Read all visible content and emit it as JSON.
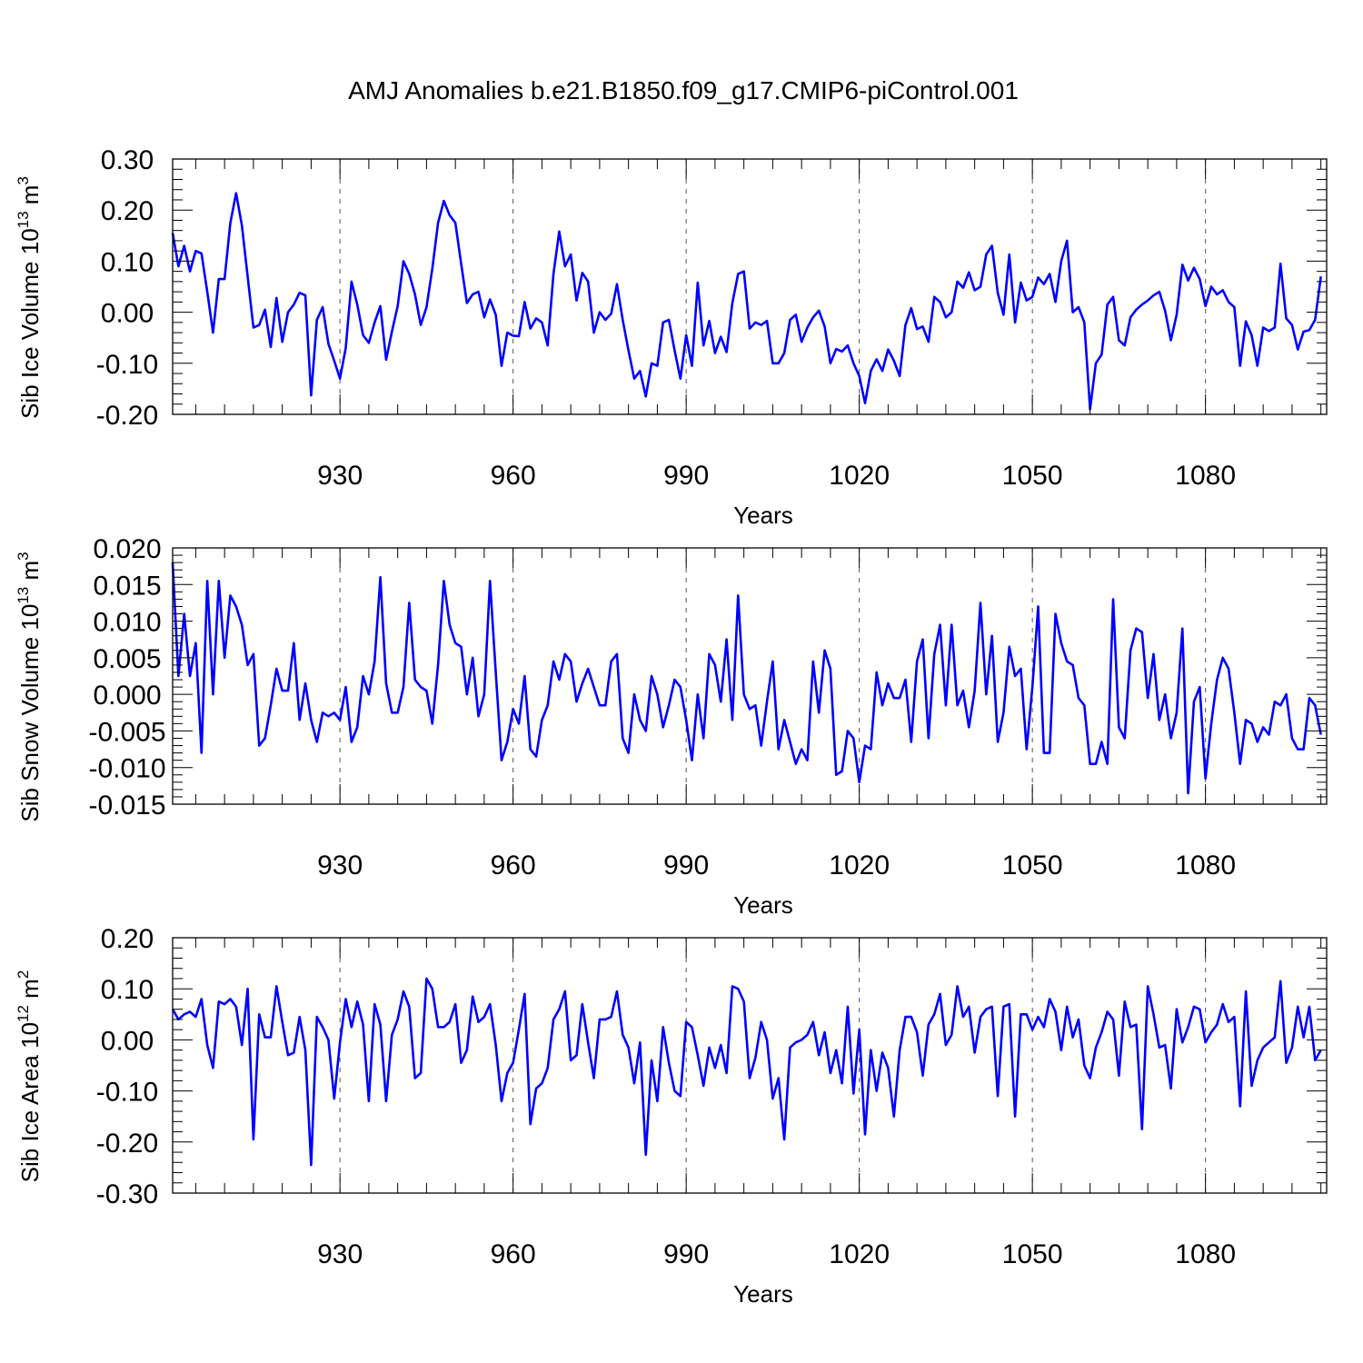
{
  "title": "AMJ Anomalies b.e21.B1850.f09_g17.CMIP6-piControl.001",
  "line_color": "#0000ff",
  "chart_data": [
    {
      "type": "line",
      "ylabel": {
        "base": "Sib Ice Volume 10",
        "exp": "13",
        "unit": " m",
        "unit_exp": "3"
      },
      "xlabel": "Years",
      "xlim": [
        901,
        1101
      ],
      "ylim": [
        -0.2,
        0.3
      ],
      "yticks": [
        -0.2,
        -0.1,
        0.0,
        0.1,
        0.2,
        0.3
      ],
      "ytick_labels": [
        "-0.20",
        "-0.10",
        "0.00",
        "0.10",
        "0.20",
        "0.30"
      ],
      "ytick_minor_step": 0.02,
      "xticks": [
        930,
        960,
        990,
        1020,
        1050,
        1080
      ],
      "xtick_labels": [
        "930",
        "960",
        "990",
        "1020",
        "1050",
        "1080"
      ],
      "xtick_minor_step": 5,
      "grid": "vertical dashed at major x ticks",
      "x_start": 901,
      "series": [
        {
          "values": [
            0.155,
            0.09,
            0.13,
            0.08,
            0.12,
            0.115,
            0.04,
            -0.04,
            0.065,
            0.065,
            0.175,
            0.233,
            0.17,
            0.07,
            -0.03,
            -0.025,
            0.005,
            -0.068,
            0.028,
            -0.058,
            0.0,
            0.015,
            0.038,
            0.033,
            -0.163,
            -0.015,
            0.01,
            -0.062,
            -0.095,
            -0.13,
            -0.07,
            0.06,
            0.015,
            -0.045,
            -0.06,
            -0.02,
            0.012,
            -0.093,
            -0.038,
            0.012,
            0.1,
            0.075,
            0.035,
            -0.025,
            0.01,
            0.085,
            0.175,
            0.218,
            0.19,
            0.175,
            0.095,
            0.018,
            0.035,
            0.04,
            -0.01,
            0.025,
            -0.005,
            -0.105,
            -0.04,
            -0.046,
            -0.047,
            0.02,
            -0.032,
            -0.012,
            -0.02,
            -0.065,
            0.075,
            0.158,
            0.09,
            0.113,
            0.023,
            0.077,
            0.06,
            -0.04,
            0.0,
            -0.015,
            -0.003,
            0.055,
            -0.015,
            -0.075,
            -0.13,
            -0.115,
            -0.165,
            -0.1,
            -0.105,
            -0.02,
            -0.015,
            -0.075,
            -0.13,
            -0.045,
            -0.105,
            0.058,
            -0.065,
            -0.017,
            -0.08,
            -0.048,
            -0.078,
            0.018,
            0.075,
            0.08,
            -0.032,
            -0.02,
            -0.025,
            -0.017,
            -0.1,
            -0.1,
            -0.08,
            -0.015,
            -0.005,
            -0.058,
            -0.03,
            -0.01,
            0.003,
            -0.028,
            -0.1,
            -0.072,
            -0.077,
            -0.065,
            -0.1,
            -0.125,
            -0.178,
            -0.115,
            -0.092,
            -0.115,
            -0.073,
            -0.095,
            -0.125,
            -0.025,
            0.008,
            -0.033,
            -0.028,
            -0.058,
            0.03,
            0.02,
            -0.01,
            0.0,
            0.06,
            0.048,
            0.078,
            0.043,
            0.05,
            0.113,
            0.13,
            0.038,
            -0.005,
            0.113,
            -0.02,
            0.058,
            0.023,
            0.03,
            0.068,
            0.055,
            0.075,
            0.02,
            0.1,
            0.14,
            0.0,
            0.01,
            -0.02,
            -0.19,
            -0.1,
            -0.083,
            0.015,
            0.03,
            -0.055,
            -0.065,
            -0.01,
            0.005,
            0.015,
            0.023,
            0.033,
            0.04,
            0.003,
            -0.055,
            -0.005,
            0.093,
            0.062,
            0.087,
            0.065,
            0.012,
            0.05,
            0.035,
            0.043,
            0.02,
            0.01,
            -0.105,
            -0.018,
            -0.045,
            -0.105,
            -0.03,
            -0.037,
            -0.03,
            0.095,
            -0.012,
            -0.025,
            -0.073,
            -0.038,
            -0.035,
            -0.015,
            0.07
          ]
        }
      ]
    },
    {
      "type": "line",
      "ylabel": {
        "base": "Sib Snow Volume 10",
        "exp": "13",
        "unit": " m",
        "unit_exp": "3"
      },
      "xlabel": "Years",
      "xlim": [
        901,
        1101
      ],
      "ylim": [
        -0.015,
        0.02
      ],
      "yticks": [
        -0.015,
        -0.01,
        -0.005,
        0.0,
        0.005,
        0.01,
        0.015,
        0.02
      ],
      "ytick_labels": [
        "-0.015",
        "-0.010",
        "-0.005",
        "0.000",
        "0.005",
        "0.010",
        "0.015",
        "0.020"
      ],
      "ytick_minor_step": 0.001,
      "xticks": [
        930,
        960,
        990,
        1020,
        1050,
        1080
      ],
      "xtick_labels": [
        "930",
        "960",
        "990",
        "1020",
        "1050",
        "1080"
      ],
      "xtick_minor_step": 5,
      "grid": "vertical dashed at major x ticks",
      "x_start": 901,
      "series": [
        {
          "values": [
            0.018,
            0.0025,
            0.011,
            0.0025,
            0.007,
            -0.008,
            0.0155,
            0.0,
            0.0155,
            0.005,
            0.0135,
            0.012,
            0.0095,
            0.004,
            0.0055,
            -0.007,
            -0.006,
            -0.0015,
            0.0035,
            0.0005,
            0.0005,
            0.007,
            -0.0035,
            0.0015,
            -0.0035,
            -0.0065,
            -0.0025,
            -0.003,
            -0.0025,
            -0.0035,
            0.001,
            -0.0065,
            -0.0045,
            0.0025,
            0.0,
            0.0045,
            0.016,
            0.0015,
            -0.0025,
            -0.0025,
            0.001,
            0.0125,
            0.002,
            0.001,
            0.0005,
            -0.004,
            0.004,
            0.0155,
            0.0095,
            0.007,
            0.0065,
            0.0,
            0.005,
            -0.003,
            0.0,
            0.0155,
            0.003,
            -0.009,
            -0.0065,
            -0.002,
            -0.004,
            0.0025,
            -0.0075,
            -0.0085,
            -0.0035,
            -0.0015,
            0.0045,
            0.002,
            0.0055,
            0.0045,
            -0.001,
            0.0015,
            0.0035,
            0.001,
            -0.0015,
            -0.0015,
            0.0045,
            0.0055,
            -0.006,
            -0.008,
            0.0,
            -0.0035,
            -0.005,
            0.0025,
            0.0,
            -0.0045,
            -0.0015,
            0.002,
            0.001,
            -0.0035,
            -0.009,
            0.0,
            -0.006,
            0.0055,
            0.004,
            -0.001,
            0.0075,
            -0.0035,
            0.0135,
            0.0,
            -0.002,
            -0.0015,
            -0.007,
            -0.001,
            0.0045,
            -0.0075,
            -0.0035,
            -0.0065,
            -0.0095,
            -0.0075,
            -0.009,
            0.0045,
            -0.0025,
            0.006,
            0.0035,
            -0.011,
            -0.0105,
            -0.005,
            -0.006,
            -0.012,
            -0.007,
            -0.0075,
            0.003,
            -0.0015,
            0.0015,
            -0.0005,
            -0.0005,
            0.002,
            -0.0065,
            0.0045,
            0.0075,
            -0.006,
            0.0055,
            0.0095,
            -0.0015,
            0.0095,
            -0.0015,
            0.0005,
            -0.0045,
            0.0005,
            0.0125,
            0.0,
            0.008,
            -0.0065,
            -0.0025,
            0.0065,
            0.0025,
            0.0035,
            -0.0075,
            0.001,
            0.012,
            -0.008,
            -0.008,
            0.011,
            0.007,
            0.0045,
            0.004,
            -0.0005,
            -0.0015,
            -0.0095,
            -0.0095,
            -0.0065,
            -0.0095,
            0.013,
            -0.0045,
            -0.006,
            0.006,
            0.009,
            0.0085,
            -0.0005,
            0.0055,
            -0.0035,
            0.0,
            -0.006,
            -0.0025,
            0.009,
            -0.0135,
            -0.001,
            0.001,
            -0.0115,
            -0.004,
            0.002,
            0.005,
            0.0035,
            -0.0025,
            -0.0095,
            -0.0035,
            -0.004,
            -0.0065,
            -0.0045,
            -0.0055,
            -0.001,
            -0.0015,
            0.0,
            -0.006,
            -0.0075,
            -0.0075,
            -0.0005,
            -0.0015,
            -0.0055
          ]
        }
      ]
    },
    {
      "type": "line",
      "ylabel": {
        "base": "Sib Ice Area 10",
        "exp": "12",
        "unit": " m",
        "unit_exp": "2"
      },
      "xlabel": "Years",
      "xlim": [
        901,
        1101
      ],
      "ylim": [
        -0.3,
        0.2
      ],
      "yticks": [
        -0.3,
        -0.2,
        -0.1,
        0.0,
        0.1,
        0.2
      ],
      "ytick_labels": [
        "-0.30",
        "-0.20",
        "-0.10",
        "0.00",
        "0.10",
        "0.20"
      ],
      "ytick_minor_step": 0.02,
      "xticks": [
        930,
        960,
        990,
        1020,
        1050,
        1080
      ],
      "xtick_labels": [
        "930",
        "960",
        "990",
        "1020",
        "1050",
        "1080"
      ],
      "xtick_minor_step": 5,
      "grid": "vertical dashed at major x ticks",
      "x_start": 901,
      "series": [
        {
          "values": [
            0.06,
            0.04,
            0.05,
            0.055,
            0.045,
            0.08,
            -0.01,
            -0.055,
            0.075,
            0.07,
            0.08,
            0.065,
            -0.01,
            0.1,
            -0.195,
            0.05,
            0.005,
            0.005,
            0.105,
            0.035,
            -0.03,
            -0.025,
            0.045,
            -0.02,
            -0.245,
            0.045,
            0.025,
            0.0,
            -0.115,
            -0.005,
            0.08,
            0.025,
            0.075,
            0.03,
            -0.12,
            0.07,
            0.03,
            -0.12,
            0.01,
            0.04,
            0.095,
            0.065,
            -0.075,
            -0.065,
            0.12,
            0.1,
            0.025,
            0.025,
            0.035,
            0.07,
            -0.045,
            -0.02,
            0.085,
            0.035,
            0.045,
            0.07,
            -0.01,
            -0.12,
            -0.065,
            -0.045,
            0.02,
            0.09,
            -0.165,
            -0.095,
            -0.085,
            -0.055,
            0.04,
            0.06,
            0.095,
            -0.04,
            -0.03,
            0.07,
            -0.005,
            -0.075,
            0.04,
            0.04,
            0.045,
            0.095,
            0.01,
            -0.015,
            -0.085,
            -0.005,
            -0.225,
            -0.04,
            -0.12,
            0.025,
            -0.045,
            -0.1,
            -0.11,
            0.035,
            0.025,
            -0.03,
            -0.09,
            -0.015,
            -0.055,
            -0.01,
            -0.065,
            0.105,
            0.1,
            0.075,
            -0.075,
            -0.035,
            0.035,
            0.0,
            -0.115,
            -0.075,
            -0.195,
            -0.015,
            -0.005,
            0.0,
            0.01,
            0.035,
            -0.03,
            0.015,
            -0.065,
            -0.02,
            -0.085,
            0.065,
            -0.105,
            0.02,
            -0.185,
            -0.02,
            -0.1,
            -0.025,
            -0.055,
            -0.15,
            -0.02,
            0.045,
            0.045,
            0.015,
            -0.07,
            0.03,
            0.05,
            0.09,
            -0.01,
            0.01,
            0.105,
            0.045,
            0.065,
            -0.025,
            0.045,
            0.06,
            0.065,
            -0.11,
            0.065,
            0.07,
            -0.15,
            0.05,
            0.05,
            0.02,
            0.045,
            0.025,
            0.08,
            0.055,
            -0.02,
            0.065,
            0.005,
            0.04,
            -0.05,
            -0.075,
            -0.015,
            0.015,
            0.055,
            0.04,
            -0.07,
            0.075,
            0.025,
            0.03,
            -0.175,
            0.105,
            0.05,
            -0.015,
            -0.01,
            -0.095,
            0.06,
            -0.005,
            0.025,
            0.065,
            0.06,
            -0.005,
            0.015,
            0.03,
            0.07,
            0.035,
            0.045,
            -0.13,
            0.095,
            -0.09,
            -0.04,
            -0.015,
            -0.005,
            0.005,
            0.115,
            -0.045,
            -0.015,
            0.065,
            0.005,
            0.065,
            -0.04,
            -0.02
          ]
        }
      ]
    }
  ]
}
